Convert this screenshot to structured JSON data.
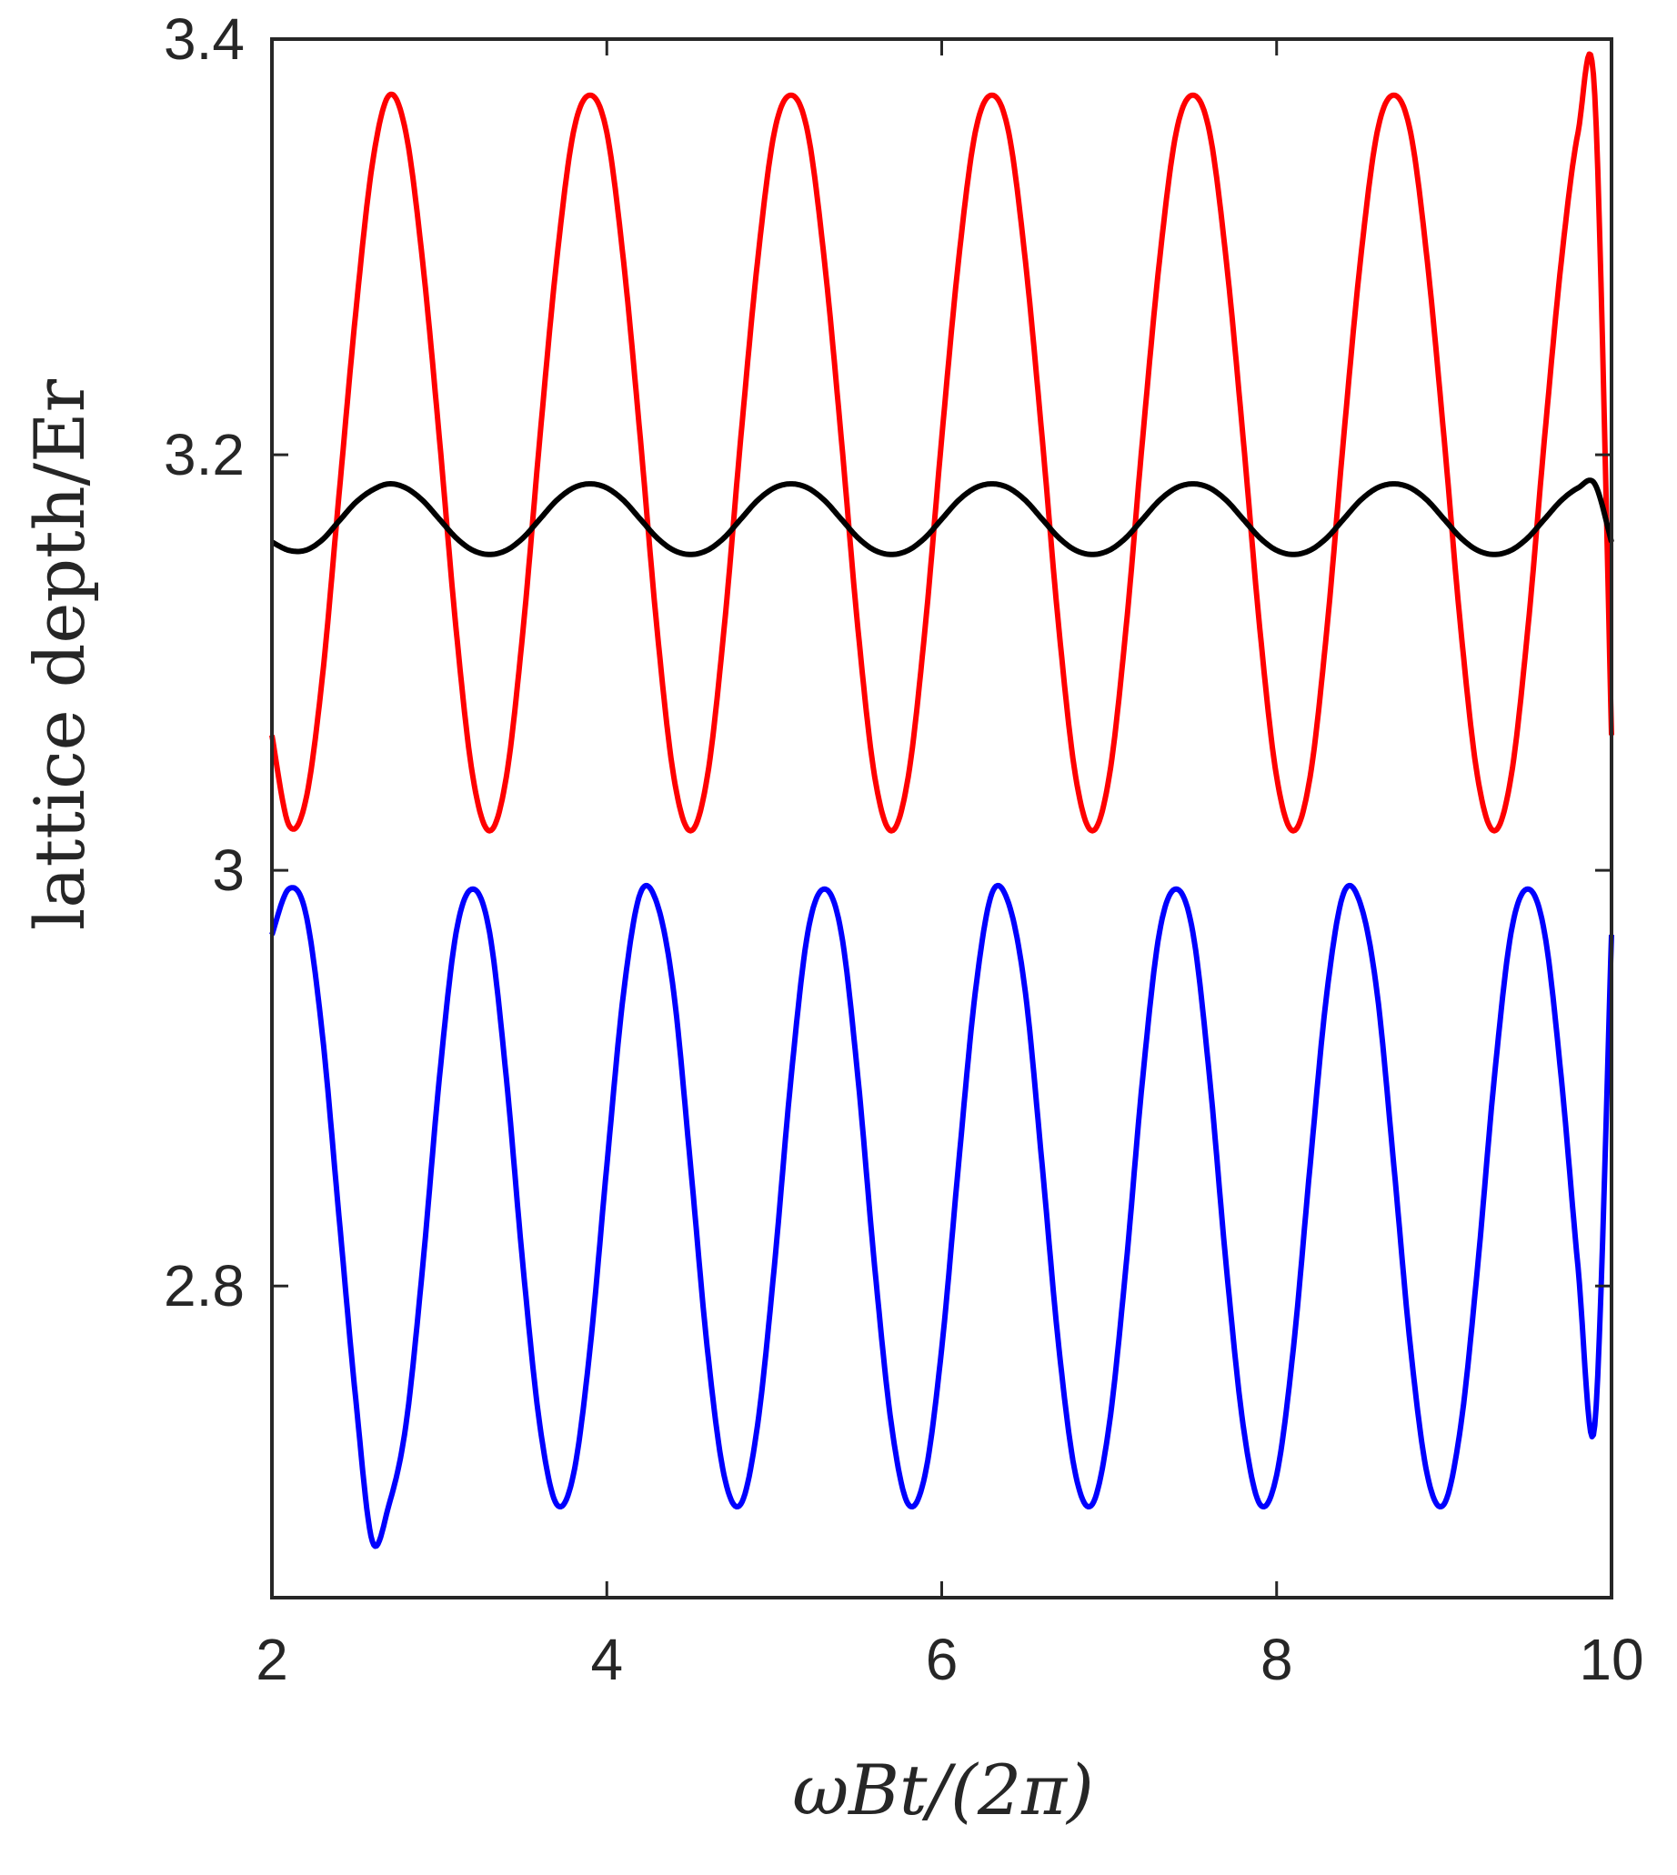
{
  "chart_data": {
    "type": "line",
    "xlabel": "ωBt/(2π)",
    "ylabel": "lattice depth/Er",
    "xlim": [
      2,
      10
    ],
    "ylim": [
      2.65,
      3.4
    ],
    "xticks": [
      2,
      4,
      6,
      8,
      10
    ],
    "xtick_labels": [
      "2",
      "4",
      "6",
      "8",
      "10"
    ],
    "yticks": [
      2.8,
      3.0,
      3.2,
      3.4
    ],
    "ytick_labels": [
      "2.8",
      "3",
      "3.2",
      "3.4"
    ],
    "grid": false,
    "legend": null,
    "series": [
      {
        "color": "#ff0000",
        "x": [
          2.0,
          2.1,
          2.2,
          2.3,
          2.4,
          2.5,
          2.6,
          2.7,
          2.8,
          2.9,
          3.0,
          3.1,
          3.2,
          3.3,
          3.4,
          3.5,
          3.6,
          3.7,
          3.8,
          3.9,
          4.0,
          4.1,
          4.2,
          4.3,
          4.4,
          4.5,
          4.6,
          4.7,
          4.8,
          4.9,
          5.0,
          5.1,
          5.2,
          5.3,
          5.4,
          5.5,
          5.6,
          5.7,
          5.8,
          5.9,
          6.0,
          6.1,
          6.2,
          6.3,
          6.4,
          6.5,
          6.6,
          6.7,
          6.8,
          6.9,
          7.0,
          7.1,
          7.2,
          7.3,
          7.4,
          7.5,
          7.6,
          7.7,
          7.8,
          7.9,
          8.0,
          8.1,
          8.2,
          8.3,
          8.4,
          8.5,
          8.6,
          8.7,
          8.8,
          8.9,
          9.0,
          9.1,
          9.2,
          9.3,
          9.4,
          9.5,
          9.6,
          9.7,
          9.8,
          9.9,
          10.0
        ],
        "y": [
          3.065,
          3.022,
          3.033,
          3.092,
          3.18,
          3.268,
          3.34,
          3.373,
          3.355,
          3.293,
          3.208,
          3.116,
          3.045,
          3.019,
          3.045,
          3.116,
          3.208,
          3.293,
          3.355,
          3.373,
          3.355,
          3.293,
          3.208,
          3.116,
          3.045,
          3.019,
          3.045,
          3.116,
          3.208,
          3.293,
          3.355,
          3.373,
          3.355,
          3.293,
          3.208,
          3.116,
          3.045,
          3.019,
          3.045,
          3.116,
          3.208,
          3.293,
          3.355,
          3.373,
          3.355,
          3.293,
          3.208,
          3.116,
          3.045,
          3.019,
          3.045,
          3.116,
          3.208,
          3.293,
          3.355,
          3.373,
          3.355,
          3.293,
          3.208,
          3.116,
          3.045,
          3.019,
          3.045,
          3.116,
          3.208,
          3.293,
          3.355,
          3.373,
          3.355,
          3.293,
          3.208,
          3.116,
          3.045,
          3.019,
          3.045,
          3.116,
          3.208,
          3.293,
          3.355,
          3.373,
          3.065
        ]
      },
      {
        "color": "#000000",
        "x": [
          2.0,
          2.1,
          2.2,
          2.3,
          2.4,
          2.5,
          2.6,
          2.7,
          2.8,
          2.9,
          3.0,
          3.1,
          3.2,
          3.3,
          3.4,
          3.5,
          3.6,
          3.7,
          3.8,
          3.9,
          4.0,
          4.1,
          4.2,
          4.3,
          4.4,
          4.5,
          4.6,
          4.7,
          4.8,
          4.9,
          5.0,
          5.1,
          5.2,
          5.3,
          5.4,
          5.5,
          5.6,
          5.7,
          5.8,
          5.9,
          6.0,
          6.1,
          6.2,
          6.3,
          6.4,
          6.5,
          6.6,
          6.7,
          6.8,
          6.9,
          7.0,
          7.1,
          7.2,
          7.3,
          7.4,
          7.5,
          7.6,
          7.7,
          7.8,
          7.9,
          8.0,
          8.1,
          8.2,
          8.3,
          8.4,
          8.5,
          8.6,
          8.7,
          8.8,
          8.9,
          9.0,
          9.1,
          9.2,
          9.3,
          9.4,
          9.5,
          9.6,
          9.7,
          9.8,
          9.9,
          10.0
        ],
        "y": [
          3.158,
          3.154,
          3.154,
          3.159,
          3.168,
          3.177,
          3.183,
          3.186,
          3.184,
          3.178,
          3.169,
          3.16,
          3.154,
          3.152,
          3.154,
          3.16,
          3.169,
          3.178,
          3.184,
          3.186,
          3.184,
          3.178,
          3.169,
          3.16,
          3.154,
          3.152,
          3.154,
          3.16,
          3.169,
          3.178,
          3.184,
          3.186,
          3.184,
          3.178,
          3.169,
          3.16,
          3.154,
          3.152,
          3.154,
          3.16,
          3.169,
          3.178,
          3.184,
          3.186,
          3.184,
          3.178,
          3.169,
          3.16,
          3.154,
          3.152,
          3.154,
          3.16,
          3.169,
          3.178,
          3.184,
          3.186,
          3.184,
          3.178,
          3.169,
          3.16,
          3.154,
          3.152,
          3.154,
          3.16,
          3.169,
          3.178,
          3.184,
          3.186,
          3.184,
          3.178,
          3.169,
          3.16,
          3.154,
          3.152,
          3.154,
          3.16,
          3.169,
          3.178,
          3.184,
          3.186,
          3.158
        ]
      },
      {
        "color": "#0000ff",
        "x": [
          2.0,
          2.1,
          2.2,
          2.3,
          2.4,
          2.5,
          2.6,
          2.7,
          2.8,
          2.9,
          3.0,
          3.1,
          3.2,
          3.3,
          3.4,
          3.5,
          3.6,
          3.7,
          3.8,
          3.9,
          4.0,
          4.1,
          4.2,
          4.3,
          4.4,
          4.5,
          4.6,
          4.7,
          4.8,
          4.9,
          5.0,
          5.1,
          5.2,
          5.3,
          5.4,
          5.5,
          5.6,
          5.7,
          5.8,
          5.9,
          6.0,
          6.1,
          6.2,
          6.3,
          6.4,
          6.5,
          6.6,
          6.7,
          6.8,
          6.9,
          7.0,
          7.1,
          7.2,
          7.3,
          7.4,
          7.5,
          7.6,
          7.7,
          7.8,
          7.9,
          8.0,
          8.1,
          8.2,
          8.3,
          8.4,
          8.5,
          8.6,
          8.7,
          8.8,
          8.9,
          9.0,
          9.1,
          9.2,
          9.3,
          9.4,
          9.5,
          9.6,
          9.7,
          9.8,
          9.9,
          10.0
        ],
        "y": [
          2.969,
          2.991,
          2.98,
          2.922,
          2.834,
          2.746,
          2.677,
          2.695,
          2.733,
          2.809,
          2.9,
          2.97,
          2.991,
          2.97,
          2.9,
          2.809,
          2.733,
          2.695,
          2.709,
          2.77,
          2.858,
          2.941,
          2.989,
          2.984,
          2.941,
          2.858,
          2.77,
          2.709,
          2.695,
          2.733,
          2.809,
          2.9,
          2.97,
          2.991,
          2.97,
          2.9,
          2.809,
          2.733,
          2.695,
          2.709,
          2.77,
          2.858,
          2.941,
          2.989,
          2.984,
          2.941,
          2.858,
          2.77,
          2.709,
          2.695,
          2.733,
          2.809,
          2.9,
          2.97,
          2.991,
          2.97,
          2.9,
          2.809,
          2.733,
          2.695,
          2.709,
          2.77,
          2.858,
          2.941,
          2.989,
          2.984,
          2.941,
          2.858,
          2.77,
          2.709,
          2.695,
          2.733,
          2.809,
          2.9,
          2.97,
          2.991,
          2.97,
          2.9,
          2.809,
          2.733,
          2.969
        ]
      }
    ]
  }
}
